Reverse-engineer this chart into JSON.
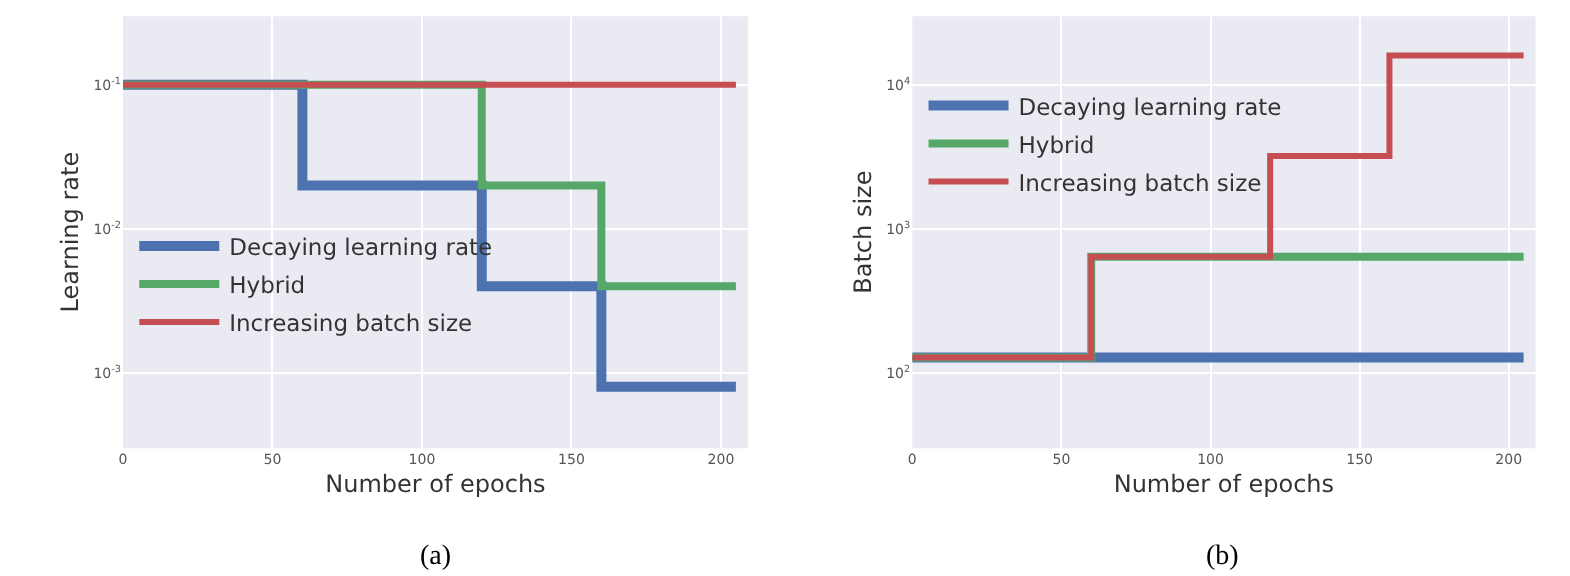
{
  "chart_data": [
    {
      "type": "step",
      "xlabel": "Number of epochs",
      "ylabel": "Learning rate",
      "x": [
        0,
        60,
        120,
        160,
        205
      ],
      "xlim": [
        0,
        209
      ],
      "xticks": [
        0,
        50,
        100,
        150,
        200
      ],
      "log": "y",
      "ylim": [
        0.0003,
        0.3
      ],
      "yticks": [
        {
          "value": 0.1,
          "label": "10$^{-1}$"
        },
        {
          "value": 0.01,
          "label": "10$^{-2}$"
        },
        {
          "value": 0.001,
          "label": "10$^{-3}$"
        }
      ],
      "grid": true,
      "legend": "left",
      "annotations": [
        "(a)"
      ],
      "series": [
        {
          "name": "Decaying learning rate",
          "color": "#4c72b0",
          "values": [
            0.1,
            0.02,
            0.004,
            0.0008,
            0.0008
          ]
        },
        {
          "name": "Hybrid",
          "color": "#55a868",
          "values": [
            0.1,
            0.1,
            0.02,
            0.004,
            0.004
          ]
        },
        {
          "name": "Increasing batch size",
          "color": "#c44e52",
          "values": [
            0.1,
            0.1,
            0.1,
            0.1,
            0.1
          ]
        }
      ]
    },
    {
      "type": "step",
      "xlabel": "Number of epochs",
      "ylabel": "Batch size",
      "x": [
        0,
        60,
        120,
        160,
        205
      ],
      "xlim": [
        0,
        209
      ],
      "xticks": [
        0,
        50,
        100,
        150,
        200
      ],
      "log": "y",
      "ylim": [
        30,
        30000
      ],
      "yticks": [
        {
          "value": 100,
          "label": "10$^{2}$"
        },
        {
          "value": 1000,
          "label": "10$^{3}$"
        },
        {
          "value": 10000,
          "label": "10$^{4}$"
        }
      ],
      "grid": true,
      "legend": "top left",
      "annotations": [
        "(b)"
      ],
      "series": [
        {
          "name": "Decaying learning rate",
          "color": "#4c72b0",
          "values": [
            128,
            128,
            128,
            128,
            128
          ]
        },
        {
          "name": "Hybrid",
          "color": "#55a868",
          "values": [
            128,
            640,
            640,
            640,
            640
          ]
        },
        {
          "name": "Increasing batch size",
          "color": "#c44e52",
          "values": [
            128,
            640,
            3200,
            16000,
            16000
          ]
        }
      ]
    }
  ]
}
